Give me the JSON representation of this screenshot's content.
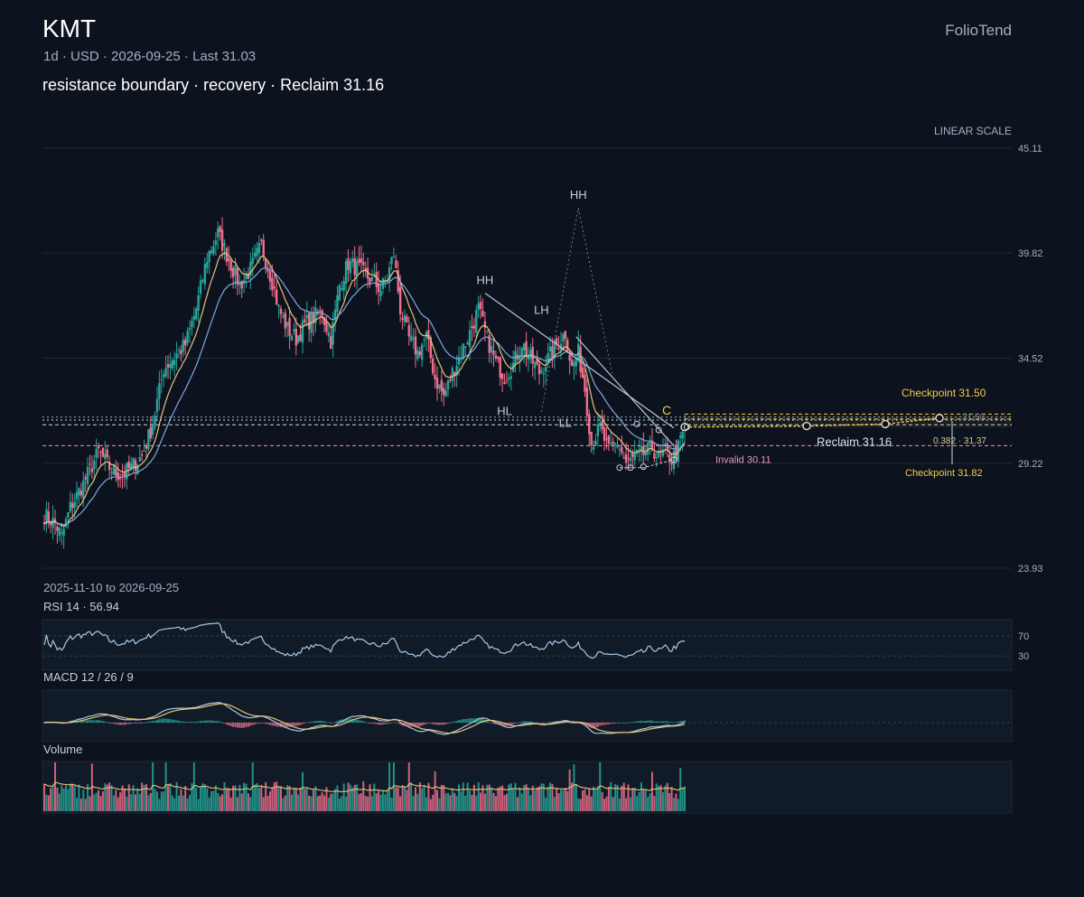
{
  "header": {
    "ticker": "KMT",
    "brand": "FolioTend",
    "meta": "1d · USD · 2026-09-25 · Last 31.03",
    "headline": "resistance boundary · recovery · Reclaim 31.16"
  },
  "colors": {
    "background": "#0c131e",
    "up": "#26a69a",
    "down": "#ef6f8c",
    "ema_fast": "#e8c27a",
    "ema_slow": "#7fa8e0",
    "accent": "#f2c94c",
    "grid": "#1c2a38"
  },
  "chart_data": [
    {
      "type": "candlestick",
      "scale_label": "LINEAR SCALE",
      "date_range_label": "2025-11-10 to 2026-09-25",
      "ylim": [
        23.93,
        45.11
      ],
      "y_ticks": [
        "45.11",
        "39.82",
        "34.52",
        "29.22",
        "23.93"
      ],
      "y_tick_values": [
        45.11,
        39.82,
        34.52,
        29.22,
        23.93
      ],
      "close_anchors": [
        [
          0,
          26.6
        ],
        [
          5,
          26.2
        ],
        [
          8,
          25.5
        ],
        [
          12,
          27.0
        ],
        [
          18,
          28.2
        ],
        [
          25,
          29.8
        ],
        [
          30,
          29.0
        ],
        [
          35,
          28.6
        ],
        [
          40,
          29.0
        ],
        [
          45,
          29.6
        ],
        [
          50,
          31.2
        ],
        [
          55,
          34.0
        ],
        [
          60,
          34.6
        ],
        [
          65,
          35.2
        ],
        [
          70,
          37.0
        ],
        [
          75,
          39.6
        ],
        [
          80,
          40.8
        ],
        [
          85,
          39.5
        ],
        [
          90,
          38.2
        ],
        [
          95,
          39.0
        ],
        [
          100,
          40.2
        ],
        [
          105,
          38.4
        ],
        [
          108,
          37.0
        ],
        [
          112,
          36.0
        ],
        [
          116,
          35.5
        ],
        [
          120,
          36.2
        ],
        [
          124,
          36.6
        ],
        [
          128,
          36.8
        ],
        [
          132,
          35.4
        ],
        [
          136,
          38.2
        ],
        [
          140,
          39.3
        ],
        [
          145,
          39.0
        ],
        [
          150,
          38.5
        ],
        [
          155,
          38.0
        ],
        [
          158,
          38.6
        ],
        [
          161,
          39.8
        ],
        [
          164,
          37.0
        ],
        [
          168,
          35.5
        ],
        [
          172,
          34.8
        ],
        [
          176,
          35.6
        ],
        [
          180,
          33.5
        ],
        [
          184,
          32.6
        ],
        [
          188,
          33.8
        ],
        [
          192,
          34.8
        ],
        [
          196,
          35.8
        ],
        [
          200,
          37.0
        ],
        [
          204,
          35.5
        ],
        [
          208,
          34.3
        ],
        [
          212,
          33.6
        ],
        [
          216,
          34.2
        ],
        [
          220,
          35.3
        ],
        [
          224,
          34.5
        ],
        [
          228,
          33.8
        ],
        [
          232,
          34.5
        ],
        [
          236,
          35.2
        ],
        [
          240,
          35.8
        ],
        [
          243,
          34.0
        ],
        [
          246,
          34.8
        ],
        [
          249,
          33.0
        ],
        [
          252,
          30.2
        ],
        [
          256,
          31.0
        ],
        [
          260,
          29.8
        ],
        [
          264,
          30.3
        ],
        [
          268,
          29.2
        ],
        [
          272,
          29.5
        ],
        [
          276,
          29.7
        ],
        [
          280,
          30.0
        ],
        [
          283,
          29.5
        ],
        [
          286,
          29.8
        ],
        [
          289,
          29.4
        ],
        [
          292,
          30.0
        ],
        [
          295,
          31.03
        ]
      ],
      "indicators": [
        "EMA fast",
        "EMA slow"
      ],
      "annotations": {
        "swing_labels": [
          {
            "label": "HH",
            "price": 37.8
          },
          {
            "label": "LH",
            "price": 36.3
          },
          {
            "label": "HH",
            "price": 42.1
          },
          {
            "label": "HL",
            "price": 31.2
          },
          {
            "label": "LL",
            "price": 30.6
          }
        ],
        "pattern_letter": "C",
        "levels": [
          {
            "name": "Reclaim",
            "value": 31.16,
            "label": "Reclaim 31.16"
          },
          {
            "name": "Invalid",
            "value": 30.11,
            "label": "Invalid 30.11"
          },
          {
            "name": "Checkpoint",
            "value": 31.5,
            "label": "Checkpoint 31.50"
          },
          {
            "name": "Checkpoint",
            "value": 31.82,
            "label": "Checkpoint 31.82"
          },
          {
            "name": "Fib",
            "value": 31.37,
            "label": "0.382 · 31.37"
          },
          {
            "name": "Level",
            "value": 31.5,
            "label": "31.50"
          }
        ]
      }
    },
    {
      "type": "line",
      "title": "RSI 14 · 56.94",
      "ylim": [
        0,
        100
      ],
      "y_ticks": [
        "70",
        "30"
      ],
      "y_tick_values": [
        70,
        30
      ],
      "last": 56.94
    },
    {
      "type": "line",
      "title": "MACD 12 / 26 / 9",
      "series": [
        "MACD",
        "Signal",
        "Histogram"
      ]
    },
    {
      "type": "bar",
      "title": "Volume"
    }
  ]
}
